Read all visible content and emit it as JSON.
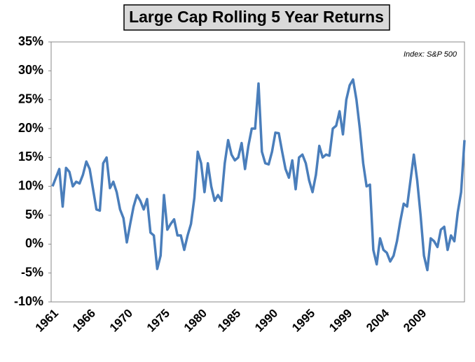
{
  "chart_data": {
    "type": "line",
    "title": "Large Cap Rolling 5 Year Returns",
    "annotation": "Index: S&P 500",
    "categories": [
      "1961",
      null,
      null,
      null,
      null,
      null,
      null,
      null,
      null,
      null,
      null,
      "1966",
      null,
      null,
      null,
      null,
      null,
      null,
      null,
      null,
      null,
      null,
      "1970",
      null,
      null,
      null,
      null,
      null,
      null,
      null,
      null,
      null,
      null,
      "1975",
      null,
      null,
      null,
      null,
      null,
      null,
      null,
      null,
      null,
      null,
      "1980",
      null,
      null,
      null,
      null,
      null,
      null,
      null,
      null,
      null,
      "1985",
      null,
      null,
      null,
      null,
      null,
      null,
      null,
      null,
      null,
      null,
      "1990",
      null,
      null,
      null,
      null,
      null,
      null,
      null,
      null,
      null,
      null,
      "1995",
      null,
      null,
      null,
      null,
      null,
      null,
      null,
      null,
      null,
      null,
      "1999",
      null,
      null,
      null,
      null,
      null,
      null,
      null,
      null,
      null,
      null,
      "2004",
      null,
      null,
      null,
      null,
      null,
      null,
      null,
      null,
      null,
      null,
      "2009",
      null,
      null,
      null,
      null,
      null,
      null,
      null,
      null,
      null,
      null,
      null,
      null,
      null
    ],
    "series": [
      {
        "color": "#4a7ebb",
        "values": [
          10,
          11.5,
          13,
          6.5,
          13.2,
          12.5,
          10,
          10.8,
          10.5,
          12,
          14.3,
          13,
          9.5,
          6,
          5.8,
          14,
          15,
          9.7,
          10.8,
          9,
          6,
          4.5,
          0.3,
          3.5,
          6.5,
          8.5,
          7.5,
          6,
          7.8,
          2,
          1.5,
          -4.3,
          -2,
          8.5,
          2.5,
          3.5,
          4.3,
          1.5,
          1.5,
          -1,
          1.5,
          3.5,
          8,
          16,
          14,
          9,
          14,
          10,
          7.5,
          8.5,
          7.5,
          14,
          18,
          15.5,
          14.5,
          15,
          17.5,
          13,
          17,
          20,
          20,
          27.8,
          16,
          14,
          13.8,
          16,
          19.3,
          19.2,
          16,
          13,
          11.5,
          14.5,
          9.5,
          15,
          15.5,
          14,
          11,
          9,
          12,
          17,
          15,
          15.5,
          15.3,
          20,
          20.5,
          23,
          19,
          25,
          27.5,
          28.5,
          25,
          20,
          14,
          10,
          10.3,
          -1,
          -3.5,
          1,
          -1,
          -1.5,
          -3,
          -2,
          0.5,
          4,
          7,
          6.5,
          11,
          15.5,
          11,
          5,
          -2,
          -4.5,
          1,
          0.5,
          -0.5,
          2.5,
          3,
          -1,
          1.5,
          0.5,
          5.5,
          9,
          18
        ]
      }
    ],
    "ylim": [
      -10,
      35
    ],
    "yticks": [
      {
        "value": -10,
        "label": "-10%"
      },
      {
        "value": -5,
        "label": "-5%"
      },
      {
        "value": 0,
        "label": "0%"
      },
      {
        "value": 5,
        "label": "5%"
      },
      {
        "value": 10,
        "label": "10%"
      },
      {
        "value": 15,
        "label": "15%"
      },
      {
        "value": 20,
        "label": "20%"
      },
      {
        "value": 25,
        "label": "25%"
      },
      {
        "value": 30,
        "label": "30%"
      },
      {
        "value": 35,
        "label": "35%"
      }
    ],
    "grid": false
  }
}
